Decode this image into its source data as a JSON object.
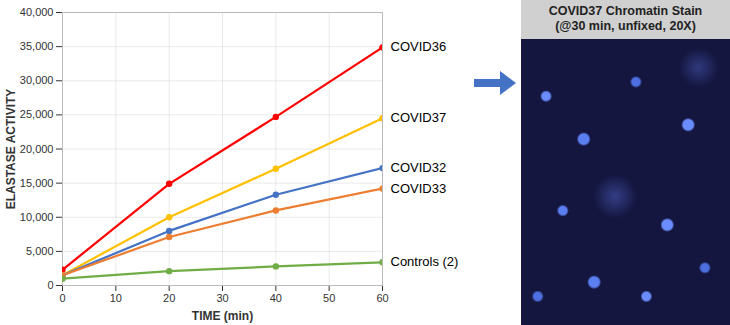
{
  "chart_data": {
    "type": "line",
    "x": [
      0,
      20,
      40,
      60
    ],
    "series": [
      {
        "name": "COVID36",
        "color": "#ff0000",
        "values": [
          2300,
          14900,
          24700,
          34900
        ]
      },
      {
        "name": "COVID37",
        "color": "#ffc000",
        "values": [
          1500,
          10000,
          17100,
          24500
        ]
      },
      {
        "name": "COVID32",
        "color": "#4472c4",
        "values": [
          1500,
          8000,
          13300,
          17200
        ]
      },
      {
        "name": "COVID33",
        "color": "#ed7d31",
        "values": [
          1500,
          7100,
          11000,
          14200
        ]
      },
      {
        "name": "Controls (2)",
        "color": "#70ad47",
        "values": [
          1000,
          2100,
          2800,
          3400
        ]
      }
    ],
    "x_label": "TIME (min)",
    "y_label": "ELASTASE ACTIVITY",
    "xlim": [
      0,
      60
    ],
    "xticks": [
      0,
      10,
      20,
      30,
      40,
      50,
      60
    ],
    "ylim": [
      0,
      40000
    ],
    "yticks": [
      0,
      {
        "value": 5000,
        "label": "5,000"
      },
      {
        "value": 10000,
        "label": "10,000"
      },
      {
        "value": 15000,
        "label": "15,000"
      },
      {
        "value": 20000,
        "label": "20,000"
      },
      {
        "value": 25000,
        "label": "25,000"
      },
      {
        "value": 30000,
        "label": "30,000"
      },
      {
        "value": 35000,
        "label": "35,000"
      },
      {
        "value": 40000,
        "label": "40,000"
      }
    ],
    "grid": true,
    "marker": "circle"
  },
  "image_panel": {
    "title": [
      "COVID37 Chromatin Stain",
      "(@30 min, unfixed, 20X)"
    ]
  }
}
